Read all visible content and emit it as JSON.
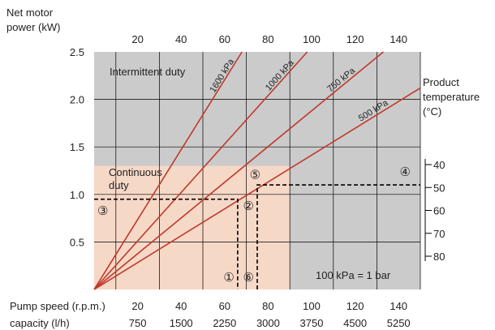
{
  "chart_data": {
    "type": "line",
    "ylabel_line1": "Net motor",
    "ylabel_line2": "power (kW)",
    "top_axis_ticks": [
      "20",
      "40",
      "60",
      "80",
      "100",
      "120",
      "140"
    ],
    "left_axis_ticks": [
      "2.5",
      "2.0",
      "1.5",
      "1.0",
      "0.5"
    ],
    "right_axis_title_line1": "Product",
    "right_axis_title_line2": "temperature",
    "right_axis_title_line3": "(°C)",
    "right_axis_ticks": [
      "40",
      "50",
      "60",
      "70",
      "80"
    ],
    "bottom_row1_label": "Pump speed (r.p.m.)",
    "bottom_row1_ticks": [
      "20",
      "40",
      "60",
      "80",
      "100",
      "120",
      "140"
    ],
    "bottom_row2_label": "capacity (l/h)",
    "bottom_row2_ticks": [
      "750",
      "1500",
      "2250",
      "3000",
      "3750",
      "4500",
      "5250"
    ],
    "x_range": [
      0,
      150
    ],
    "y_range": [
      0,
      2.5
    ],
    "grid": true,
    "region_intermittent_label": "Intermittent duty",
    "region_continuous_label_line1": "Continuous",
    "region_continuous_label_line2": "duty",
    "continuous_region": {
      "x_max": 90,
      "y_max": 1.3
    },
    "series": [
      {
        "name": "1600 kPa",
        "points": [
          [
            0,
            0
          ],
          [
            68,
            2.5
          ]
        ]
      },
      {
        "name": "1000 kPa",
        "points": [
          [
            0,
            0
          ],
          [
            98,
            2.5
          ]
        ]
      },
      {
        "name": "750 kPa",
        "points": [
          [
            0,
            0
          ],
          [
            133,
            2.5
          ]
        ]
      },
      {
        "name": "500 kPa",
        "points": [
          [
            0,
            0
          ],
          [
            150,
            2.12
          ]
        ]
      }
    ],
    "dashed_guides": [
      {
        "points": [
          [
            0,
            0.95
          ],
          [
            66,
            0.95
          ],
          [
            66,
            0
          ]
        ]
      },
      {
        "points": [
          [
            75,
            0
          ],
          [
            75,
            1.1
          ],
          [
            150,
            1.1
          ]
        ]
      }
    ],
    "markers": [
      {
        "label": "①",
        "x": 62,
        "y": 0.12
      },
      {
        "label": "②",
        "x": 71,
        "y": 0.87
      },
      {
        "label": "③",
        "x": 4,
        "y": 0.82
      },
      {
        "label": "④",
        "x": 143,
        "y": 1.23
      },
      {
        "label": "⑤",
        "x": 74,
        "y": 1.2
      },
      {
        "label": "⑥",
        "x": 71,
        "y": 0.12
      }
    ],
    "note": "100 kPa = 1 bar"
  },
  "colors": {
    "intermittent_fill": "#cbcbcb",
    "continuous_fill": "#f6d8c7",
    "series_line": "#c0392b",
    "grid": "#000000"
  }
}
